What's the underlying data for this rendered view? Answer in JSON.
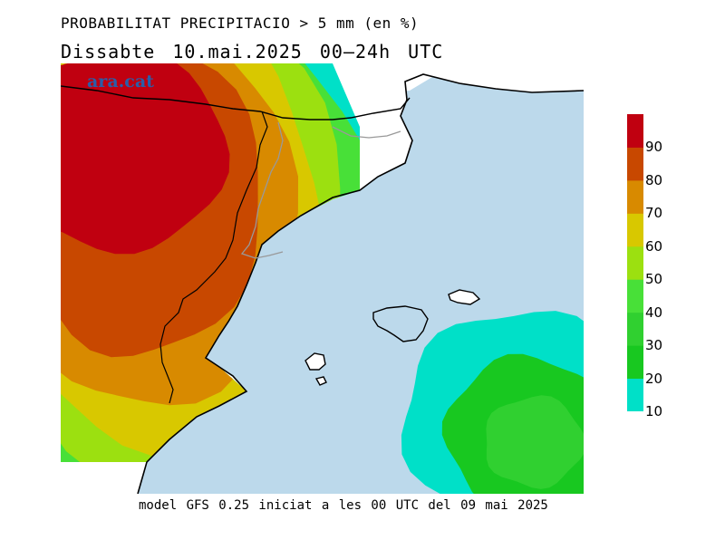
{
  "header": {
    "title_line1": "PROBABILITAT PRECIPITACIO > 5 mm (en %)",
    "title_line2": "Dissabte   10.mai.2025 00–24h UTC"
  },
  "brand": {
    "name": "ara.cat"
  },
  "footer": {
    "model_note": "model GFS 0.25 iniciat a les 00 UTC del 09 mai 2025"
  },
  "legend": {
    "ticks": [
      "90",
      "80",
      "70",
      "60",
      "50",
      "40",
      "30",
      "20",
      "10"
    ],
    "bins": [
      {
        "min": 10,
        "max": 20,
        "color": "#00e0c8"
      },
      {
        "min": 20,
        "max": 30,
        "color": "#18c820"
      },
      {
        "min": 30,
        "max": 40,
        "color": "#30d030"
      },
      {
        "min": 40,
        "max": 50,
        "color": "#48e038"
      },
      {
        "min": 50,
        "max": 60,
        "color": "#9ce010"
      },
      {
        "min": 60,
        "max": 70,
        "color": "#d8c800"
      },
      {
        "min": 70,
        "max": 80,
        "color": "#d88a00"
      },
      {
        "min": 80,
        "max": 90,
        "color": "#c84800"
      },
      {
        "min": 90,
        "max": 100,
        "color": "#c00010"
      }
    ]
  },
  "colors": {
    "sea": "#bcd9eb",
    "land": "#ffffff",
    "coast": "#000000",
    "border": "#999999"
  }
}
